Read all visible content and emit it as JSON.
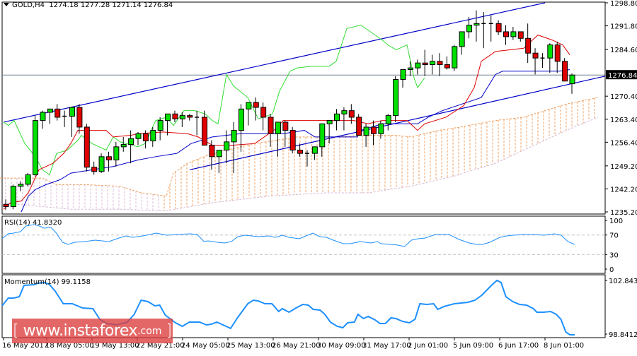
{
  "header": {
    "symbol": "GOLD,H4",
    "ohlc": "1274.18 1277.28 1271.14 1276.84"
  },
  "colors": {
    "bull": "#00e000",
    "bear": "#e00000",
    "tenkan": "#e00000",
    "kijun": "#0000c8",
    "chikou": "#33dd33",
    "channel": "#0000c8",
    "cloud_up": "#f0a060",
    "cloud_down": "#d8b8d8",
    "rsi": "#1e90ff",
    "momentum": "#1e90ff",
    "price_line": "#708090",
    "price_label_bg": "#000000"
  },
  "price_axis": {
    "ticks": [
      "1298.80",
      "1291.80",
      "1284.60",
      "1276.84",
      "1270.40",
      "1263.40",
      "1256.40",
      "1249.20",
      "1242.20",
      "1235.20"
    ],
    "current_price": "1276.84"
  },
  "rsi": {
    "label": "RSI(14) 41.8320",
    "ticks": [
      "100",
      "70",
      "30",
      "0"
    ]
  },
  "momentum": {
    "label": "Momentum(14) 99.1158",
    "ticks": [
      "102.8432",
      "98.8412"
    ]
  },
  "time_axis": {
    "labels": [
      "16 May 2017",
      "18 May 05:00",
      "19 May 13:00",
      "22 May 21:00",
      "24 May 05:00",
      "25 May 13:00",
      "26 May 21:00",
      "30 May 09:00",
      "31 May 17:00",
      "2 Jun 01:00",
      "5 Jun 09:00",
      "6 Jun 17:00",
      "8 Jun 01:00"
    ]
  },
  "watermark": {
    "open": "[",
    "site": "www.instaforex",
    "tld": ".com",
    "close": "]"
  },
  "chart_data": [
    {
      "type": "candlestick",
      "title": "GOLD,H4",
      "subtitle": "1274.18 1277.28 1271.14 1276.84",
      "ylim": [
        1235.2,
        1298.8
      ],
      "yticks": [
        1298.8,
        1291.8,
        1284.6,
        1276.84,
        1270.4,
        1263.4,
        1256.4,
        1249.2,
        1242.2,
        1235.2
      ],
      "x_labels": [
        "16 May 2017",
        "18 May 05:00",
        "19 May 13:00",
        "22 May 21:00",
        "24 May 05:00",
        "25 May 13:00",
        "26 May 21:00",
        "30 May 09:00",
        "31 May 17:00",
        "2 Jun 01:00",
        "5 Jun 09:00",
        "6 Jun 17:00",
        "8 Jun 01:00"
      ],
      "last_ohlc": {
        "open": 1274.18,
        "high": 1277.28,
        "low": 1271.14,
        "close": 1276.84
      },
      "indicators": [
        "Ichimoku (Tenkan red, Kijun blue, Chikou green, cloud dashed)",
        "Ascending channel (blue trendlines)",
        "Horizontal current price line 1276.84"
      ],
      "candles_approx": [
        [
          1237.5,
          1239.0,
          1235.8,
          1236.8
        ],
        [
          1236.8,
          1243.5,
          1236.0,
          1243.0
        ],
        [
          1243.0,
          1244.5,
          1241.5,
          1243.6
        ],
        [
          1243.6,
          1247.0,
          1243.0,
          1246.5
        ],
        [
          1246.5,
          1264.5,
          1246.0,
          1263.0
        ],
        [
          1263.0,
          1266.0,
          1260.5,
          1265.5
        ],
        [
          1265.5,
          1266.5,
          1262.0,
          1266.5
        ],
        [
          1266.5,
          1268.0,
          1263.0,
          1264.0
        ],
        [
          1264.0,
          1266.0,
          1261.0,
          1264.3
        ],
        [
          1264.3,
          1267.0,
          1258.0,
          1267.0
        ],
        [
          1267.0,
          1268.0,
          1259.0,
          1261.0
        ],
        [
          1261.0,
          1262.0,
          1247.5,
          1248.8
        ],
        [
          1248.8,
          1250.5,
          1246.5,
          1247.5
        ],
        [
          1247.5,
          1253.0,
          1247.0,
          1252.0
        ],
        [
          1252.0,
          1253.5,
          1247.5,
          1251.0
        ],
        [
          1251.0,
          1256.5,
          1249.0,
          1255.0
        ],
        [
          1255.0,
          1258.0,
          1253.5,
          1255.7
        ],
        [
          1255.7,
          1260.0,
          1250.0,
          1257.5
        ],
        [
          1257.5,
          1259.5,
          1255.5,
          1259.0
        ],
        [
          1259.0,
          1260.0,
          1254.5,
          1256.8
        ],
        [
          1256.8,
          1261.0,
          1255.0,
          1260.0
        ],
        [
          1260.0,
          1264.0,
          1257.0,
          1263.0
        ],
        [
          1263.0,
          1265.0,
          1258.5,
          1265.0
        ],
        [
          1265.0,
          1266.0,
          1262.5,
          1263.5
        ],
        [
          1263.5,
          1265.5,
          1261.0,
          1264.5
        ],
        [
          1264.5,
          1265.0,
          1263.0,
          1264.0
        ],
        [
          1264.0,
          1266.0,
          1258.5,
          1264.0
        ],
        [
          1264.0,
          1266.0,
          1255.5,
          1255.5
        ],
        [
          1255.5,
          1257.0,
          1248.0,
          1252.0
        ],
        [
          1252.0,
          1254.0,
          1247.0,
          1254.0
        ],
        [
          1254.0,
          1260.0,
          1250.0,
          1256.5
        ],
        [
          1256.5,
          1262.5,
          1247.0,
          1260.0
        ],
        [
          1260.0,
          1268.0,
          1253.5,
          1266.5
        ],
        [
          1266.5,
          1268.0,
          1261.5,
          1268.5
        ],
        [
          1268.5,
          1270.0,
          1263.0,
          1267.0
        ],
        [
          1267.0,
          1268.5,
          1260.0,
          1264.0
        ],
        [
          1264.0,
          1265.0,
          1255.0,
          1259.0
        ],
        [
          1259.0,
          1261.0,
          1252.0,
          1262.5
        ],
        [
          1262.5,
          1263.0,
          1255.0,
          1260.0
        ],
        [
          1260.0,
          1261.0,
          1253.0,
          1254.0
        ],
        [
          1254.0,
          1256.0,
          1252.0,
          1253.0
        ],
        [
          1253.0,
          1254.0,
          1249.0,
          1253.0
        ],
        [
          1253.0,
          1255.0,
          1251.0,
          1255.0
        ],
        [
          1255.0,
          1262.0,
          1252.0,
          1262.0
        ],
        [
          1262.0,
          1263.0,
          1256.0,
          1263.0
        ],
        [
          1263.0,
          1266.5,
          1260.0,
          1265.0
        ],
        [
          1265.0,
          1267.0,
          1260.0,
          1266.0
        ],
        [
          1266.0,
          1268.0,
          1262.0,
          1264.0
        ],
        [
          1264.0,
          1265.0,
          1258.5,
          1258.5
        ],
        [
          1258.5,
          1262.0,
          1255.0,
          1261.0
        ],
        [
          1261.0,
          1263.0,
          1255.5,
          1259.0
        ],
        [
          1259.0,
          1263.0,
          1257.5,
          1262.0
        ],
        [
          1262.0,
          1265.0,
          1260.0,
          1264.5
        ],
        [
          1264.5,
          1276.5,
          1262.5,
          1275.5
        ],
        [
          1275.5,
          1278.0,
          1273.0,
          1278.5
        ],
        [
          1278.5,
          1281.0,
          1276.5,
          1279.0
        ],
        [
          1279.0,
          1281.5,
          1277.0,
          1280.5
        ],
        [
          1280.5,
          1284.5,
          1276.5,
          1280.0
        ],
        [
          1280.0,
          1283.0,
          1277.0,
          1281.0
        ],
        [
          1281.0,
          1283.5,
          1276.5,
          1280.0
        ],
        [
          1280.0,
          1282.5,
          1278.5,
          1279.0
        ],
        [
          1279.0,
          1286.0,
          1278.0,
          1285.5
        ],
        [
          1285.5,
          1290.0,
          1283.0,
          1290.0
        ],
        [
          1290.0,
          1294.5,
          1288.0,
          1292.0
        ],
        [
          1292.0,
          1296.5,
          1287.0,
          1292.5
        ],
        [
          1292.5,
          1296.0,
          1285.0,
          1292.5
        ],
        [
          1292.5,
          1295.0,
          1287.0,
          1292.5
        ],
        [
          1292.5,
          1293.5,
          1289.0,
          1290.0
        ],
        [
          1290.0,
          1292.0,
          1286.0,
          1288.5
        ],
        [
          1288.5,
          1291.5,
          1287.5,
          1290.0
        ],
        [
          1290.0,
          1290.0,
          1287.0,
          1288.0
        ],
        [
          1288.0,
          1292.5,
          1280.5,
          1283.5
        ],
        [
          1283.5,
          1285.0,
          1277.0,
          1282.0
        ],
        [
          1282.0,
          1283.5,
          1279.0,
          1282.0
        ],
        [
          1282.0,
          1286.5,
          1277.5,
          1286.0
        ],
        [
          1286.0,
          1287.0,
          1277.5,
          1281.0
        ],
        [
          1281.0,
          1282.0,
          1275.0,
          1275.0
        ],
        [
          1274.18,
          1277.28,
          1271.14,
          1276.84
        ]
      ]
    },
    {
      "type": "line",
      "title": "RSI(14) 41.8320",
      "ylim": [
        0,
        100
      ],
      "yticks": [
        100,
        70,
        30,
        0
      ],
      "levels": [
        70,
        30
      ],
      "last_value": 41.832
    },
    {
      "type": "line",
      "title": "Momentum(14) 99.1158",
      "ylim": [
        98.8412,
        102.8432
      ],
      "yticks": [
        102.8432,
        98.8412
      ],
      "last_value": 99.1158
    }
  ]
}
